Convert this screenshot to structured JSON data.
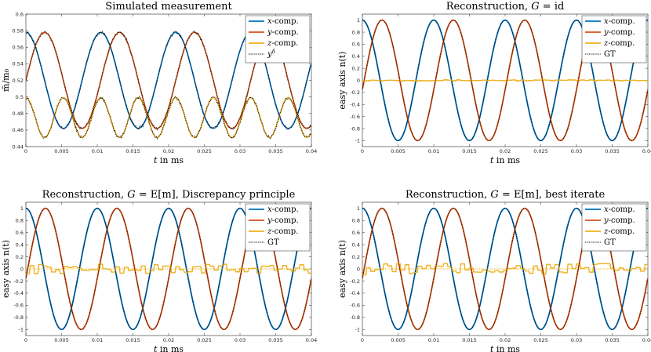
{
  "chart_data": [
    {
      "type": "line",
      "title": "Simulated measurement",
      "xlabel": "t in ms",
      "ylabel": "m̄/m₀",
      "xlim": [
        0,
        0.04
      ],
      "ylim": [
        0.44,
        0.6
      ],
      "xticks": [
        "0",
        "0.005",
        "0.01",
        "0.015",
        "0.02",
        "0.025",
        "0.03",
        "0.035",
        "0.04"
      ],
      "yticks": [
        "0.44",
        "0.46",
        "0.48",
        "0.5",
        "0.52",
        "0.54",
        "0.56",
        "0.58",
        "0.6"
      ],
      "legend_position": "top-right",
      "kind": "measurement",
      "period": 0.0105,
      "series": [
        {
          "name": "x-comp.",
          "color": "#0072BD",
          "center": 0.52,
          "amp": 0.058,
          "phase": 0.0
        },
        {
          "name": "y-comp.",
          "color": "#D95319",
          "center": 0.52,
          "amp": 0.058,
          "phase": -1.5708
        },
        {
          "name": "z-comp.",
          "color": "#EDB120",
          "center": 0.475,
          "amp": 0.024,
          "phase": 0.0
        },
        {
          "name": "yδ",
          "color": "#000000",
          "dotted": true
        }
      ]
    },
    {
      "type": "line",
      "title": "Reconstruction, G = id",
      "xlabel": "t in ms",
      "ylabel": "easy axis n(t)",
      "xlim": [
        0,
        0.04
      ],
      "ylim": [
        -1.1,
        1.1
      ],
      "xticks": [
        "0",
        "0.005",
        "0.01",
        "0.015",
        "0.02",
        "0.025",
        "0.03",
        "0.035",
        "0.04"
      ],
      "yticks": [
        "-1",
        "-0.8",
        "-0.6",
        "-0.4",
        "-0.2",
        "0",
        "0.2",
        "0.4",
        "0.6",
        "0.8",
        "1"
      ],
      "legend_position": "top-right",
      "kind": "reconstruction",
      "period": 0.01,
      "z_noise": 0.01,
      "series": [
        {
          "name": "x-comp.",
          "color": "#0072BD"
        },
        {
          "name": "y-comp.",
          "color": "#D95319"
        },
        {
          "name": "z-comp.",
          "color": "#EDB120"
        },
        {
          "name": "GT",
          "color": "#000000",
          "dotted": true
        }
      ]
    },
    {
      "type": "line",
      "title": "Reconstruction, G = E[m], Discrepancy principle",
      "xlabel": "t in ms",
      "ylabel": "easy axis n(t)",
      "xlim": [
        0,
        0.04
      ],
      "ylim": [
        -1.1,
        1.1
      ],
      "xticks": [
        "0",
        "0.005",
        "0.01",
        "0.015",
        "0.02",
        "0.025",
        "0.03",
        "0.035",
        "0.04"
      ],
      "yticks": [
        "-1",
        "-0.8",
        "-0.6",
        "-0.4",
        "-0.2",
        "0",
        "0.2",
        "0.4",
        "0.6",
        "0.8",
        "1"
      ],
      "legend_position": "top-right",
      "kind": "reconstruction",
      "period": 0.01,
      "z_noise": 0.08,
      "series": [
        {
          "name": "x-comp.",
          "color": "#0072BD"
        },
        {
          "name": "y-comp.",
          "color": "#D95319"
        },
        {
          "name": "z-comp.",
          "color": "#EDB120"
        },
        {
          "name": "GT",
          "color": "#000000",
          "dotted": true
        }
      ]
    },
    {
      "type": "line",
      "title": "Reconstruction, G = E[m], best iterate",
      "xlabel": "t in ms",
      "ylabel": "easy axis n(t)",
      "xlim": [
        0,
        0.04
      ],
      "ylim": [
        -1.1,
        1.1
      ],
      "xticks": [
        "0",
        "0.005",
        "0.01",
        "0.015",
        "0.02",
        "0.025",
        "0.03",
        "0.035",
        "0.04"
      ],
      "yticks": [
        "-1",
        "-0.8",
        "-0.6",
        "-0.4",
        "-0.2",
        "0",
        "0.2",
        "0.4",
        "0.6",
        "0.8",
        "1"
      ],
      "legend_position": "top-right",
      "kind": "reconstruction",
      "period": 0.01,
      "z_noise": 0.1,
      "series": [
        {
          "name": "x-comp.",
          "color": "#0072BD"
        },
        {
          "name": "y-comp.",
          "color": "#D95319"
        },
        {
          "name": "z-comp.",
          "color": "#EDB120"
        },
        {
          "name": "GT",
          "color": "#000000",
          "dotted": true
        }
      ]
    }
  ]
}
